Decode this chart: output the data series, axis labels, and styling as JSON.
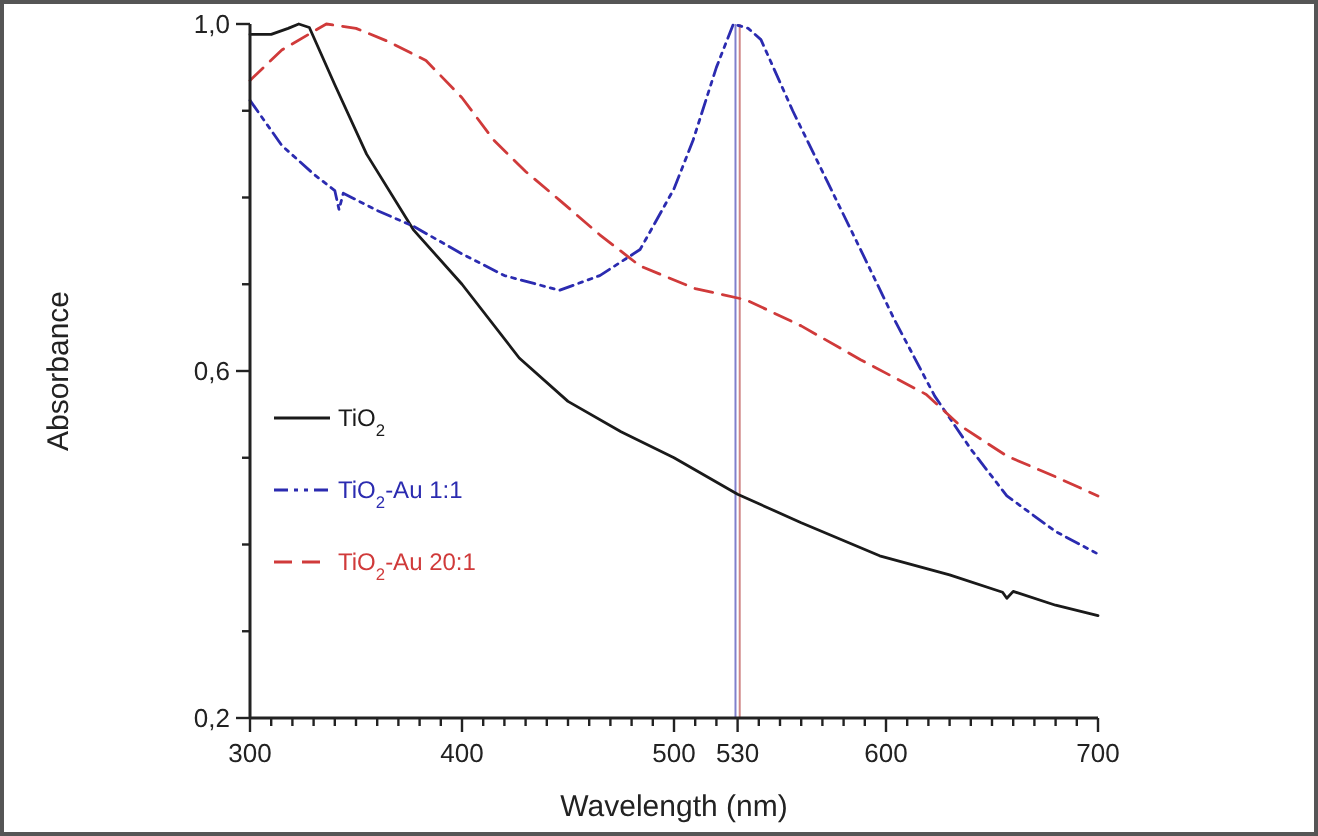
{
  "chart_data": {
    "type": "line",
    "xlabel": "Wavelength (nm)",
    "ylabel": "Absorbance",
    "xlim": [
      300,
      700
    ],
    "ylim": [
      0.2,
      1.0
    ],
    "xticks": [
      300,
      {
        "value": 310,
        "label": null
      },
      {
        "value": 320,
        "label": null
      },
      {
        "value": 330,
        "label": null
      },
      {
        "value": 340,
        "label": null
      },
      {
        "value": 350,
        "label": null
      },
      {
        "value": 360,
        "label": null
      },
      {
        "value": 370,
        "label": null
      },
      {
        "value": 380,
        "label": null
      },
      {
        "value": 390,
        "label": null
      },
      400,
      {
        "value": 410,
        "label": null
      },
      {
        "value": 420,
        "label": null
      },
      {
        "value": 430,
        "label": null
      },
      {
        "value": 440,
        "label": null
      },
      {
        "value": 450,
        "label": null
      },
      {
        "value": 460,
        "label": null
      },
      {
        "value": 470,
        "label": null
      },
      {
        "value": 480,
        "label": null
      },
      {
        "value": 490,
        "label": null
      },
      500,
      {
        "value": 510,
        "label": null
      },
      {
        "value": 520,
        "label": null
      },
      530,
      {
        "value": 540,
        "label": null
      },
      {
        "value": 550,
        "label": null
      },
      {
        "value": 560,
        "label": null
      },
      {
        "value": 570,
        "label": null
      },
      {
        "value": 580,
        "label": null
      },
      {
        "value": 590,
        "label": null
      },
      600,
      {
        "value": 610,
        "label": null
      },
      {
        "value": 620,
        "label": null
      },
      {
        "value": 630,
        "label": null
      },
      {
        "value": 640,
        "label": null
      },
      {
        "value": 650,
        "label": null
      },
      {
        "value": 660,
        "label": null
      },
      {
        "value": 670,
        "label": null
      },
      {
        "value": 680,
        "label": null
      },
      {
        "value": 690,
        "label": null
      },
      700
    ],
    "yticks": [
      {
        "value": 0.2,
        "label": "0,2"
      },
      {
        "value": 0.3,
        "label": null
      },
      {
        "value": 0.4,
        "label": null
      },
      {
        "value": 0.5,
        "label": null
      },
      {
        "value": 0.6,
        "label": "0,6"
      },
      {
        "value": 0.7,
        "label": null
      },
      {
        "value": 0.8,
        "label": null
      },
      {
        "value": 0.9,
        "label": null
      },
      {
        "value": 1.0,
        "label": "1,0"
      }
    ],
    "grid": false,
    "legend": "bottom left",
    "ref_lines": [
      {
        "axis": "x",
        "value": 529,
        "color": "#8080cc"
      },
      {
        "axis": "x",
        "value": 531,
        "color": "#d08888"
      }
    ],
    "series": [
      {
        "name": "TiO$_{2}$",
        "color": "#1a1a1a",
        "line_style": "solid",
        "x": [
          300,
          310,
          318,
          323,
          328,
          340,
          355,
          377,
          400,
          427,
          450,
          475,
          500,
          530,
          560,
          597,
          630,
          655,
          657,
          660,
          680,
          700
        ],
        "values": [
          0.988,
          0.988,
          0.995,
          1.0,
          0.996,
          0.93,
          0.85,
          0.763,
          0.7,
          0.615,
          0.565,
          0.53,
          0.5,
          0.458,
          0.425,
          0.387,
          0.365,
          0.345,
          0.338,
          0.346,
          0.33,
          0.318
        ]
      },
      {
        "name": "TiO$_{2}$-Au 1:1",
        "color": "#2b2bb0",
        "line_style": "dotted",
        "x": [
          300,
          315,
          330,
          340,
          342,
          344,
          360,
          377,
          400,
          420,
          446,
          465,
          484,
          500,
          509,
          520,
          528,
          535,
          541,
          556,
          572,
          588,
          604,
          623,
          640,
          657,
          680,
          700
        ],
        "values": [
          0.912,
          0.86,
          0.827,
          0.808,
          0.786,
          0.805,
          0.785,
          0.767,
          0.735,
          0.71,
          0.693,
          0.71,
          0.74,
          0.81,
          0.866,
          0.95,
          1.0,
          0.995,
          0.982,
          0.9,
          0.82,
          0.74,
          0.659,
          0.571,
          0.51,
          0.456,
          0.415,
          0.389
        ]
      },
      {
        "name": "TiO$_{2}$-Au 20:1",
        "color": "#d03a3a",
        "line_style": "dashed",
        "x": [
          300,
          315,
          336,
          350,
          365,
          383,
          400,
          415,
          430,
          446,
          465,
          484,
          510,
          534,
          560,
          588,
          619,
          635,
          657,
          680,
          700
        ],
        "values": [
          0.935,
          0.97,
          1.0,
          0.995,
          0.98,
          0.958,
          0.915,
          0.866,
          0.83,
          0.797,
          0.757,
          0.721,
          0.695,
          0.682,
          0.652,
          0.613,
          0.573,
          0.537,
          0.502,
          0.478,
          0.456
        ]
      }
    ]
  }
}
